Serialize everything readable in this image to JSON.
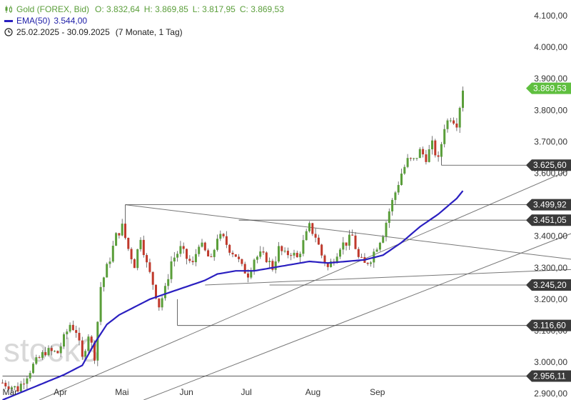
{
  "legend": {
    "instrument": "Gold (FOREX, Bid)",
    "open": "O: 3.832,64",
    "high": "H: 3.869,85",
    "low": "L: 3.817,95",
    "close": "C: 3.869,53",
    "ema_label": "EMA(50)",
    "ema_value": "3.544,00",
    "range": "25.02.2025 - 30.09.2025",
    "range_detail": "(7 Monate, 1 Tag)",
    "candle_icon": "candlestick-icon",
    "clock_icon": "clock-icon"
  },
  "watermark": "stock3",
  "colors": {
    "up": "#5a9e3a",
    "down": "#c0392b",
    "ema": "#2a1fc0",
    "line": "#777777",
    "badge_price": "#5fbf3f",
    "badge_level": "#3a3a3a"
  },
  "chart_data": {
    "type": "candlestick",
    "ylim": [
      2880,
      4150
    ],
    "y_ticks": [
      {
        "v": 4100,
        "label": "4.100,00"
      },
      {
        "v": 4000,
        "label": "4.000,00"
      },
      {
        "v": 3900,
        "label": "3.900,00"
      },
      {
        "v": 3800,
        "label": "3.800,00"
      },
      {
        "v": 3700,
        "label": "3.700,00"
      },
      {
        "v": 3600,
        "label": "3.600,00"
      },
      {
        "v": 3500,
        "label": "3.500,00"
      },
      {
        "v": 3400,
        "label": "3.400,00"
      },
      {
        "v": 3300,
        "label": "3.300,00"
      },
      {
        "v": 3200,
        "label": "3.200,00"
      },
      {
        "v": 3100,
        "label": "3.100,00"
      },
      {
        "v": 3000,
        "label": "3.000,00"
      },
      {
        "v": 2900,
        "label": "2.900,00"
      }
    ],
    "x_ticks": [
      {
        "i": 0,
        "label": "Mär"
      },
      {
        "i": 19,
        "label": "Apr"
      },
      {
        "i": 39,
        "label": "Mai"
      },
      {
        "i": 60,
        "label": "Jun"
      },
      {
        "i": 80,
        "label": "Jul"
      },
      {
        "i": 101,
        "label": "Aug"
      },
      {
        "i": 122,
        "label": "Sep"
      }
    ],
    "ohlc": [],
    "close_anchors": [
      [
        0,
        2935
      ],
      [
        5,
        2915
      ],
      [
        10,
        2990
      ],
      [
        14,
        3035
      ],
      [
        18,
        3030
      ],
      [
        22,
        3120
      ],
      [
        24,
        3100
      ],
      [
        26,
        3010
      ],
      [
        28,
        3090
      ],
      [
        30,
        3020
      ],
      [
        32,
        3240
      ],
      [
        35,
        3330
      ],
      [
        37,
        3400
      ],
      [
        39,
        3430
      ],
      [
        41,
        3360
      ],
      [
        43,
        3310
      ],
      [
        45,
        3400
      ],
      [
        47,
        3310
      ],
      [
        49,
        3250
      ],
      [
        51,
        3180
      ],
      [
        53,
        3230
      ],
      [
        55,
        3320
      ],
      [
        58,
        3360
      ],
      [
        60,
        3330
      ],
      [
        62,
        3310
      ],
      [
        64,
        3380
      ],
      [
        66,
        3350
      ],
      [
        68,
        3320
      ],
      [
        70,
        3400
      ],
      [
        72,
        3390
      ],
      [
        74,
        3360
      ],
      [
        76,
        3340
      ],
      [
        78,
        3300
      ],
      [
        80,
        3280
      ],
      [
        82,
        3330
      ],
      [
        84,
        3340
      ],
      [
        86,
        3330
      ],
      [
        88,
        3300
      ],
      [
        90,
        3360
      ],
      [
        92,
        3340
      ],
      [
        94,
        3350
      ],
      [
        96,
        3330
      ],
      [
        98,
        3380
      ],
      [
        100,
        3430
      ],
      [
        102,
        3400
      ],
      [
        104,
        3340
      ],
      [
        106,
        3300
      ],
      [
        108,
        3330
      ],
      [
        110,
        3370
      ],
      [
        112,
        3380
      ],
      [
        114,
        3400
      ],
      [
        116,
        3330
      ],
      [
        118,
        3310
      ],
      [
        120,
        3330
      ],
      [
        122,
        3370
      ],
      [
        124,
        3410
      ],
      [
        126,
        3480
      ],
      [
        128,
        3540
      ],
      [
        130,
        3600
      ],
      [
        132,
        3640
      ],
      [
        134,
        3640
      ],
      [
        136,
        3670
      ],
      [
        138,
        3650
      ],
      [
        140,
        3690
      ],
      [
        142,
        3640
      ],
      [
        144,
        3750
      ],
      [
        146,
        3780
      ],
      [
        148,
        3760
      ],
      [
        150,
        3870
      ]
    ],
    "ema": [
      [
        0,
        2880
      ],
      [
        10,
        2920
      ],
      [
        20,
        2960
      ],
      [
        26,
        2990
      ],
      [
        30,
        3060
      ],
      [
        34,
        3120
      ],
      [
        38,
        3150
      ],
      [
        42,
        3170
      ],
      [
        48,
        3200
      ],
      [
        54,
        3220
      ],
      [
        60,
        3240
      ],
      [
        66,
        3260
      ],
      [
        70,
        3280
      ],
      [
        76,
        3290
      ],
      [
        82,
        3290
      ],
      [
        88,
        3300
      ],
      [
        94,
        3310
      ],
      [
        100,
        3320
      ],
      [
        106,
        3315
      ],
      [
        112,
        3320
      ],
      [
        118,
        3325
      ],
      [
        124,
        3340
      ],
      [
        130,
        3380
      ],
      [
        136,
        3430
      ],
      [
        142,
        3470
      ],
      [
        148,
        3520
      ],
      [
        150,
        3544
      ]
    ],
    "trendlines": [
      {
        "from": [
          40,
          3499.92
        ],
        "to": [
          187,
          3325
        ]
      },
      {
        "from": [
          66,
          3245.2
        ],
        "to": [
          187,
          3295
        ]
      },
      {
        "from": [
          12,
          2880
        ],
        "to": [
          187,
          3620
        ]
      },
      {
        "from": [
          46,
          2880
        ],
        "to": [
          187,
          3415
        ]
      }
    ],
    "hlines": [
      {
        "from": 40,
        "value": 3499.92,
        "label": "3.499,92"
      },
      {
        "from": 77,
        "value": 3451.05,
        "label": "3.451,05"
      },
      {
        "from": 87,
        "value": 3245.2,
        "label": "3.245,20"
      },
      {
        "from": 57,
        "value": 3116.6,
        "label": "3.116,60"
      },
      {
        "from": 143,
        "value": 3625.6,
        "label": "3.625,60"
      },
      {
        "from": 0,
        "value": 2956.11,
        "label": "2.956,11"
      }
    ],
    "last_price": {
      "value": 3869.53,
      "label": "3.869,53"
    },
    "last_index": 150
  }
}
